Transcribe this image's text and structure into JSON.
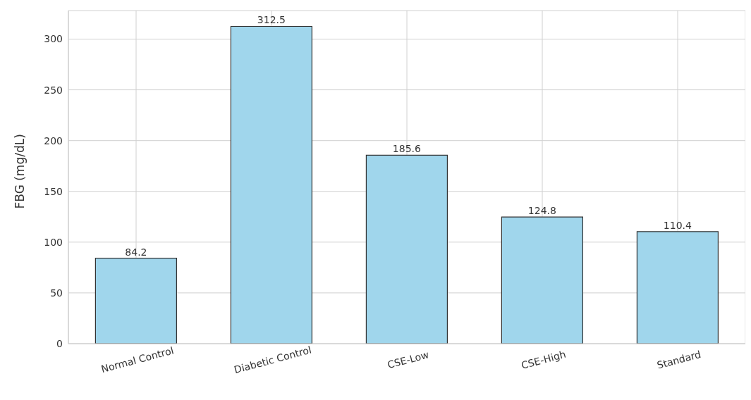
{
  "chart_data": {
    "type": "bar",
    "ylabel": "FBG (mg/dL)",
    "categories": [
      "Normal Control",
      "Diabetic Control",
      "CSE-Low",
      "CSE-High",
      "Standard"
    ],
    "values": [
      84.2,
      312.5,
      185.6,
      124.8,
      110.4
    ],
    "color": "#a0d6ec",
    "ylim": [
      0,
      328.1
    ],
    "yticks": [
      0,
      50,
      100,
      150,
      200,
      250,
      300
    ],
    "grid": true,
    "data_labels": true
  }
}
